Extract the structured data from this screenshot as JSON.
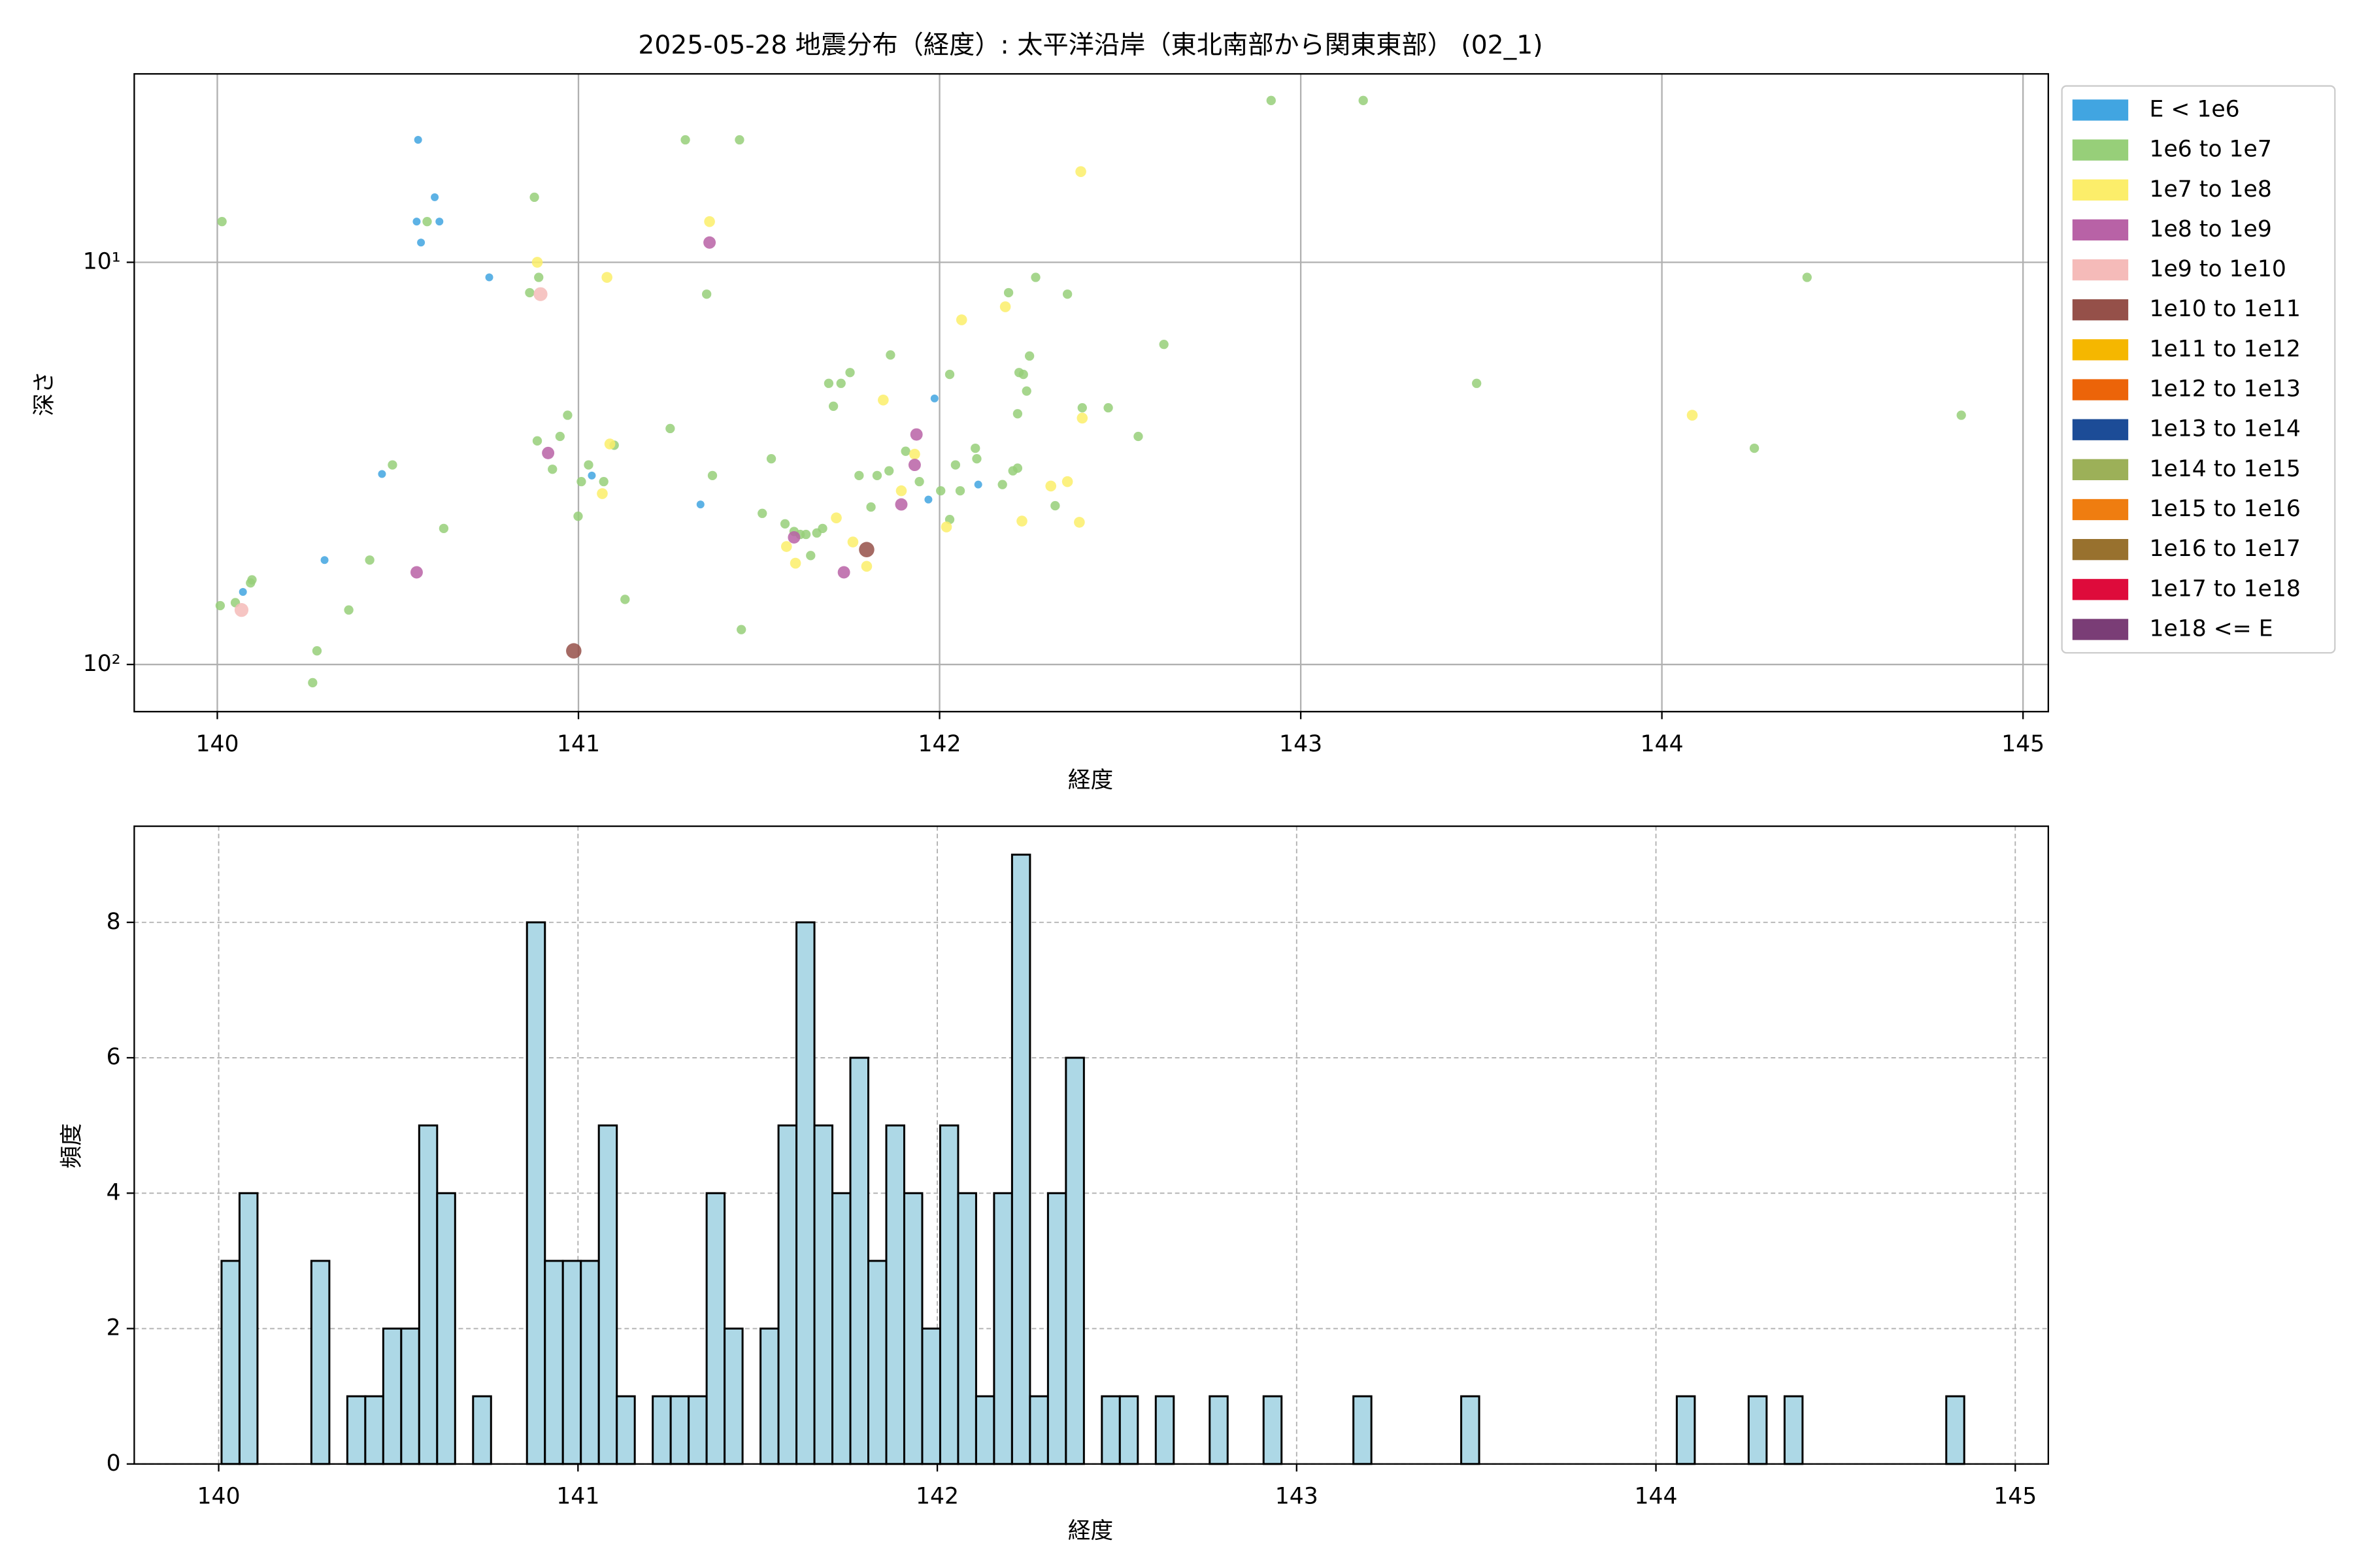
{
  "chart_data": [
    {
      "type": "scatter",
      "title": "2025-05-28 地震分布（経度）: 太平洋沿岸（東北南部から関東東部） (02_1)",
      "xlabel": "経度",
      "ylabel": "深さ",
      "xlim": [
        139.77,
        145.07
      ],
      "xticks": [
        140,
        141,
        142,
        143,
        144,
        145
      ],
      "ylim": [
        131,
        3.4
      ],
      "log_y": true,
      "yticks": [
        {
          "value": 10,
          "label": "10¹"
        },
        {
          "value": 100,
          "label": "10²"
        }
      ],
      "grid": true,
      "legend": "outside-right",
      "series": [
        {
          "name": "E < 1e6",
          "color": "#41a5e1",
          "x": [
            140.556,
            140.552,
            140.602,
            140.564,
            140.615,
            140.753,
            140.456,
            140.297,
            140.071,
            141.037,
            141.338,
            141.986,
            141.969,
            142.107
          ],
          "values": [
            4.96,
            7.92,
            6.89,
            8.93,
            7.92,
            10.9,
            33.6,
            55.0,
            66.0,
            33.9,
            40.0,
            21.8,
            38.9,
            35.7
          ]
        },
        {
          "name": "1e6 to 1e7",
          "color": "#97cf79",
          "x": [
            140.013,
            140.008,
            140.05,
            140.092,
            140.096,
            140.276,
            140.264,
            140.364,
            140.422,
            140.485,
            140.627,
            140.581,
            140.878,
            140.865,
            140.89,
            140.886,
            140.928,
            140.949,
            140.97,
            140.999,
            141.008,
            141.028,
            141.07,
            141.099,
            141.129,
            141.254,
            141.296,
            141.446,
            141.355,
            141.371,
            141.451,
            141.509,
            141.534,
            141.572,
            141.597,
            141.614,
            141.63,
            141.643,
            141.66,
            141.676,
            141.693,
            141.706,
            141.727,
            141.752,
            141.777,
            141.81,
            141.827,
            141.86,
            141.864,
            141.906,
            141.944,
            142.003,
            142.028,
            142.028,
            142.044,
            142.057,
            142.099,
            142.103,
            142.174,
            142.191,
            142.203,
            142.216,
            142.22,
            142.232,
            142.241,
            142.216,
            142.249,
            142.266,
            142.32,
            142.354,
            142.395,
            142.467,
            142.55,
            142.621,
            142.918,
            143.173,
            143.487,
            144.256,
            144.402,
            144.829
          ],
          "values": [
            7.92,
            71.4,
            70.2,
            62.7,
            61.6,
            92.5,
            111,
            73.2,
            55.0,
            31.9,
            45.9,
            7.92,
            6.89,
            11.9,
            10.9,
            27.8,
            32.7,
            27.1,
            24.0,
            42.8,
            35.1,
            31.9,
            35.1,
            28.5,
            68.9,
            25.9,
            4.96,
            4.96,
            12.0,
            33.9,
            81.9,
            42.1,
            30.8,
            44.7,
            46.7,
            47.5,
            47.5,
            53.6,
            47.1,
            45.9,
            20.0,
            22.8,
            20.0,
            18.8,
            33.9,
            40.6,
            33.9,
            33.0,
            17.0,
            29.5,
            35.1,
            37.0,
            43.6,
            19.0,
            31.9,
            37.0,
            29.0,
            30.8,
            35.7,
            11.9,
            33.0,
            32.5,
            18.8,
            19.0,
            20.9,
            23.8,
            17.1,
            10.9,
            40.3,
            12.0,
            23.0,
            23.0,
            27.1,
            16.0,
            3.96,
            3.96,
            20.0,
            29.0,
            10.9,
            24.0
          ]
        },
        {
          "name": "1e7 to 1e8",
          "color": "#fcee6a",
          "x": [
            140.886,
            141.079,
            141.087,
            141.066,
            141.363,
            141.576,
            141.601,
            141.714,
            141.76,
            141.798,
            141.844,
            141.894,
            141.931,
            142.019,
            142.061,
            142.182,
            142.228,
            142.308,
            142.354,
            142.391,
            142.387,
            142.395,
            144.084
          ],
          "values": [
            10.0,
            10.9,
            28.3,
            37.6,
            7.92,
            50.9,
            56.0,
            43.2,
            49.6,
            57.0,
            22.0,
            37.0,
            30.0,
            45.5,
            13.9,
            12.9,
            44.0,
            36.0,
            35.1,
            5.95,
            44.3,
            24.4,
            24.0
          ]
        },
        {
          "name": "1e8 to 1e9",
          "color": "#b862a6",
          "x": [
            141.363,
            140.916,
            140.552,
            141.597,
            141.735,
            141.894,
            141.931,
            141.936
          ],
          "values": [
            8.93,
            29.8,
            59.0,
            48.3,
            59.0,
            40.0,
            31.9,
            26.8
          ]
        },
        {
          "name": "1e9 to 1e10",
          "color": "#f5bbb9",
          "x": [
            140.067,
            140.895
          ],
          "values": [
            73.2,
            12.0
          ]
        },
        {
          "name": "1e10 to 1e11",
          "color": "#955049",
          "x": [
            141.798,
            140.987
          ],
          "values": [
            51.8,
            92.5
          ]
        },
        {
          "name": "1e11 to 1e12",
          "color": "#f5b700",
          "x": [],
          "values": []
        },
        {
          "name": "1e12 to 1e13",
          "color": "#ec6409",
          "x": [],
          "values": []
        },
        {
          "name": "1e13 to 1e14",
          "color": "#1c4c97",
          "x": [],
          "values": []
        },
        {
          "name": "1e14 to 1e15",
          "color": "#9cb058",
          "x": [],
          "values": []
        },
        {
          "name": "1e15 to 1e16",
          "color": "#ef7d10",
          "x": [],
          "values": []
        },
        {
          "name": "1e16 to 1e17",
          "color": "#98712e",
          "x": [],
          "values": []
        },
        {
          "name": "1e17 to 1e18",
          "color": "#de0b3b",
          "x": [],
          "values": []
        },
        {
          "name": "1e18 <= E",
          "color": "#7a3d76",
          "x": [],
          "values": []
        }
      ]
    },
    {
      "type": "histogram",
      "xlabel": "経度",
      "ylabel": "頻度",
      "color": "#add8e6",
      "edgecolor": "#000000",
      "xlim": [
        139.765,
        145.092
      ],
      "xticks": [
        140,
        141,
        142,
        143,
        144,
        145
      ],
      "ylim": [
        0,
        9.42
      ],
      "yticks": [
        0,
        2,
        4,
        6,
        8
      ],
      "grid": true,
      "bins": [
        140.008,
        140.058,
        140.108,
        140.158,
        140.208,
        140.258,
        140.308,
        140.358,
        140.408,
        140.458,
        140.508,
        140.558,
        140.608,
        140.658,
        140.708,
        140.758,
        140.808,
        140.858,
        140.908,
        140.958,
        141.008,
        141.058,
        141.108,
        141.158,
        141.208,
        141.258,
        141.308,
        141.358,
        141.408,
        141.458,
        141.508,
        141.558,
        141.608,
        141.658,
        141.708,
        141.758,
        141.808,
        141.858,
        141.908,
        141.958,
        142.008,
        142.058,
        142.108,
        142.158,
        142.208,
        142.258,
        142.308,
        142.358,
        142.408,
        142.458,
        142.508,
        142.558,
        142.608,
        142.658,
        142.708,
        142.758,
        142.808,
        142.858,
        142.908,
        142.958,
        143.008,
        143.058,
        143.108,
        143.158,
        143.208,
        143.258,
        143.308,
        143.358,
        143.408,
        143.458,
        143.508,
        143.558,
        143.608,
        143.658,
        143.708,
        143.758,
        143.808,
        143.858,
        143.908,
        143.958,
        144.008,
        144.058,
        144.108,
        144.158,
        144.208,
        144.258,
        144.308,
        144.358,
        144.408,
        144.458,
        144.508,
        144.558,
        144.608,
        144.658,
        144.708,
        144.758,
        144.808,
        144.858
      ],
      "values": [
        3,
        4,
        0,
        0,
        0,
        3,
        0,
        1,
        1,
        2,
        2,
        5,
        4,
        0,
        1,
        0,
        0,
        8,
        3,
        3,
        3,
        5,
        1,
        0,
        1,
        1,
        1,
        4,
        2,
        0,
        2,
        5,
        8,
        5,
        4,
        6,
        3,
        5,
        4,
        2,
        5,
        4,
        1,
        4,
        9,
        1,
        4,
        6,
        0,
        1,
        1,
        0,
        1,
        0,
        0,
        1,
        0,
        0,
        1,
        0,
        0,
        0,
        0,
        1,
        0,
        0,
        0,
        0,
        0,
        1,
        0,
        0,
        0,
        0,
        0,
        0,
        0,
        0,
        0,
        0,
        0,
        1,
        0,
        0,
        0,
        1,
        0,
        1,
        0,
        0,
        0,
        0,
        0,
        0,
        0,
        0,
        1
      ]
    }
  ]
}
